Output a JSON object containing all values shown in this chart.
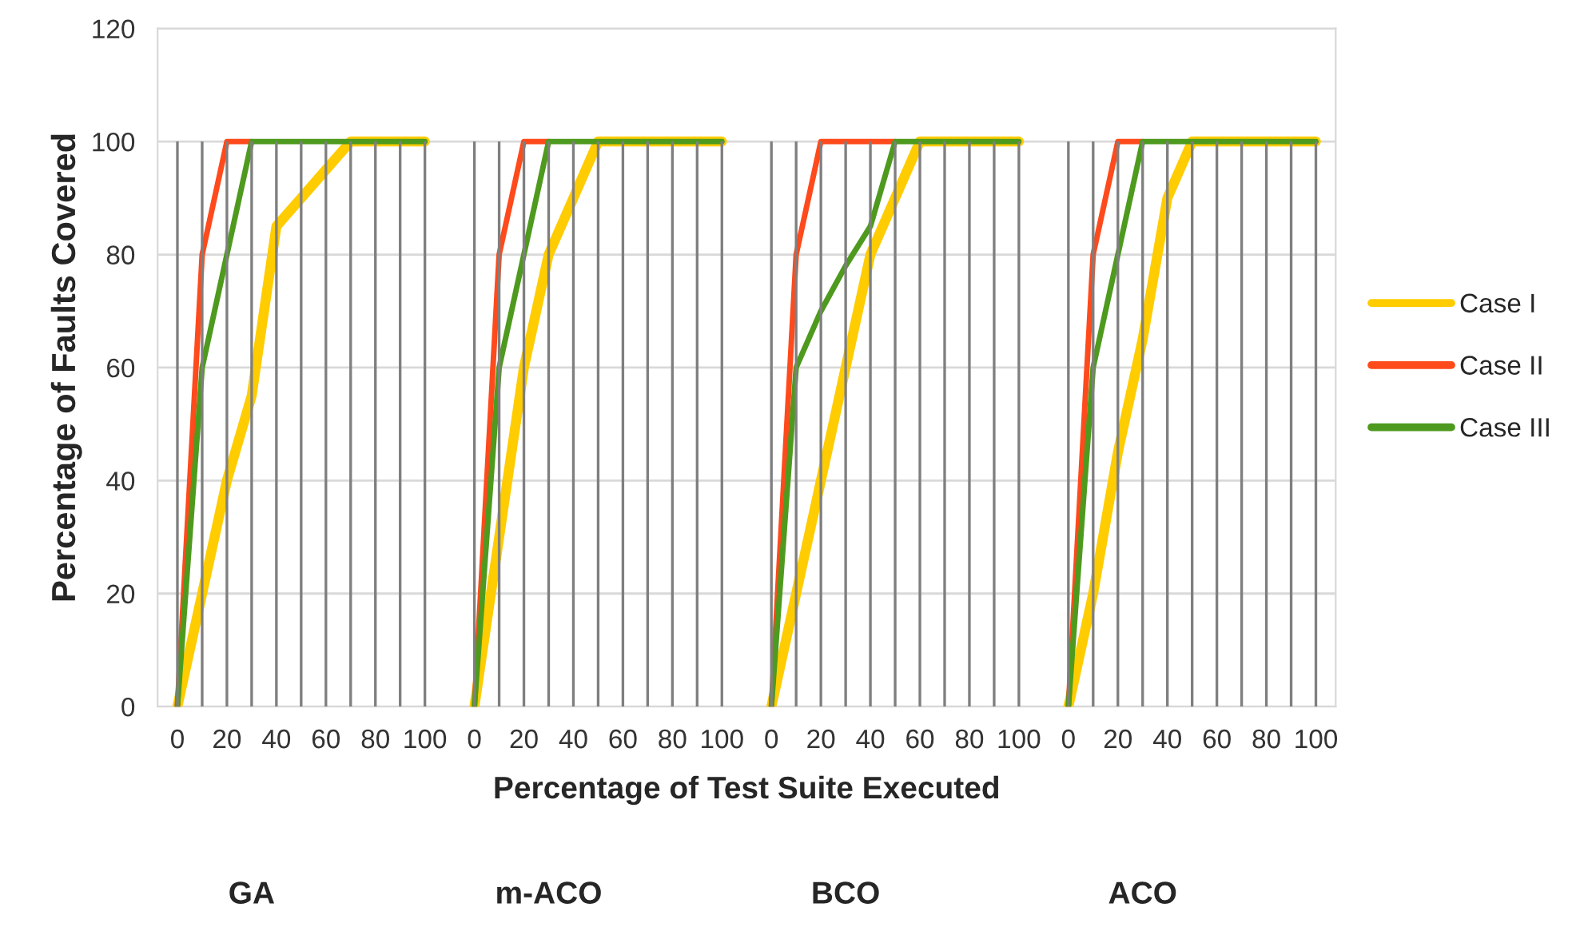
{
  "chart_data": {
    "type": "line",
    "xlabel": "Percentage of Test Suite Executed",
    "ylabel": "Percentage of Faults Covered",
    "categories": [
      "0",
      null,
      "20",
      null,
      "40",
      null,
      "60",
      null,
      "80",
      null,
      "100",
      null,
      "0",
      null,
      "20",
      null,
      "40",
      null,
      "60",
      null,
      "80",
      null,
      "100",
      null,
      "0",
      null,
      "20",
      null,
      "40",
      null,
      "60",
      null,
      "80",
      null,
      "100",
      null,
      "0",
      null,
      "20",
      null,
      "40",
      null,
      "60",
      null,
      "80",
      null,
      "100"
    ],
    "series": [
      {
        "name": "Case I",
        "color": "#ffcc00",
        "values": [
          0,
          20,
          40,
          55,
          85,
          90,
          95,
          100,
          100,
          100,
          100,
          null,
          0,
          30,
          60,
          80,
          90,
          100,
          100,
          100,
          100,
          100,
          100,
          null,
          0,
          20,
          40,
          60,
          80,
          90,
          100,
          100,
          100,
          100,
          100,
          null,
          0,
          20,
          45,
          65,
          90,
          100,
          100,
          100,
          100,
          100,
          100
        ]
      },
      {
        "name": "Case II",
        "color": "#ff4a1c",
        "values": [
          0,
          80,
          100,
          100,
          null,
          null,
          null,
          null,
          null,
          null,
          null,
          null,
          0,
          80,
          100,
          100,
          null,
          null,
          null,
          null,
          null,
          null,
          null,
          null,
          0,
          80,
          100,
          100,
          100,
          100,
          null,
          null,
          null,
          null,
          null,
          null,
          0,
          80,
          100,
          100,
          null,
          null,
          null,
          null,
          null,
          null,
          null
        ]
      },
      {
        "name": "Case III",
        "color": "#4e9a1e",
        "values": [
          0,
          60,
          80,
          100,
          100,
          100,
          100,
          100,
          100,
          100,
          100,
          null,
          0,
          60,
          80,
          100,
          100,
          100,
          100,
          100,
          100,
          100,
          100,
          null,
          0,
          60,
          70,
          78,
          85,
          100,
          100,
          100,
          100,
          100,
          100,
          null,
          0,
          60,
          80,
          100,
          100,
          100,
          100,
          100,
          100,
          100,
          100
        ]
      }
    ],
    "ylim": [
      0,
      120
    ],
    "yticks": [
      0,
      20,
      40,
      60,
      80,
      100,
      120
    ],
    "grid": true,
    "legend": "right",
    "marker": "none",
    "line_style": "solid",
    "annotations": [
      "GA",
      "m-ACO",
      "BCO",
      "ACO"
    ]
  }
}
